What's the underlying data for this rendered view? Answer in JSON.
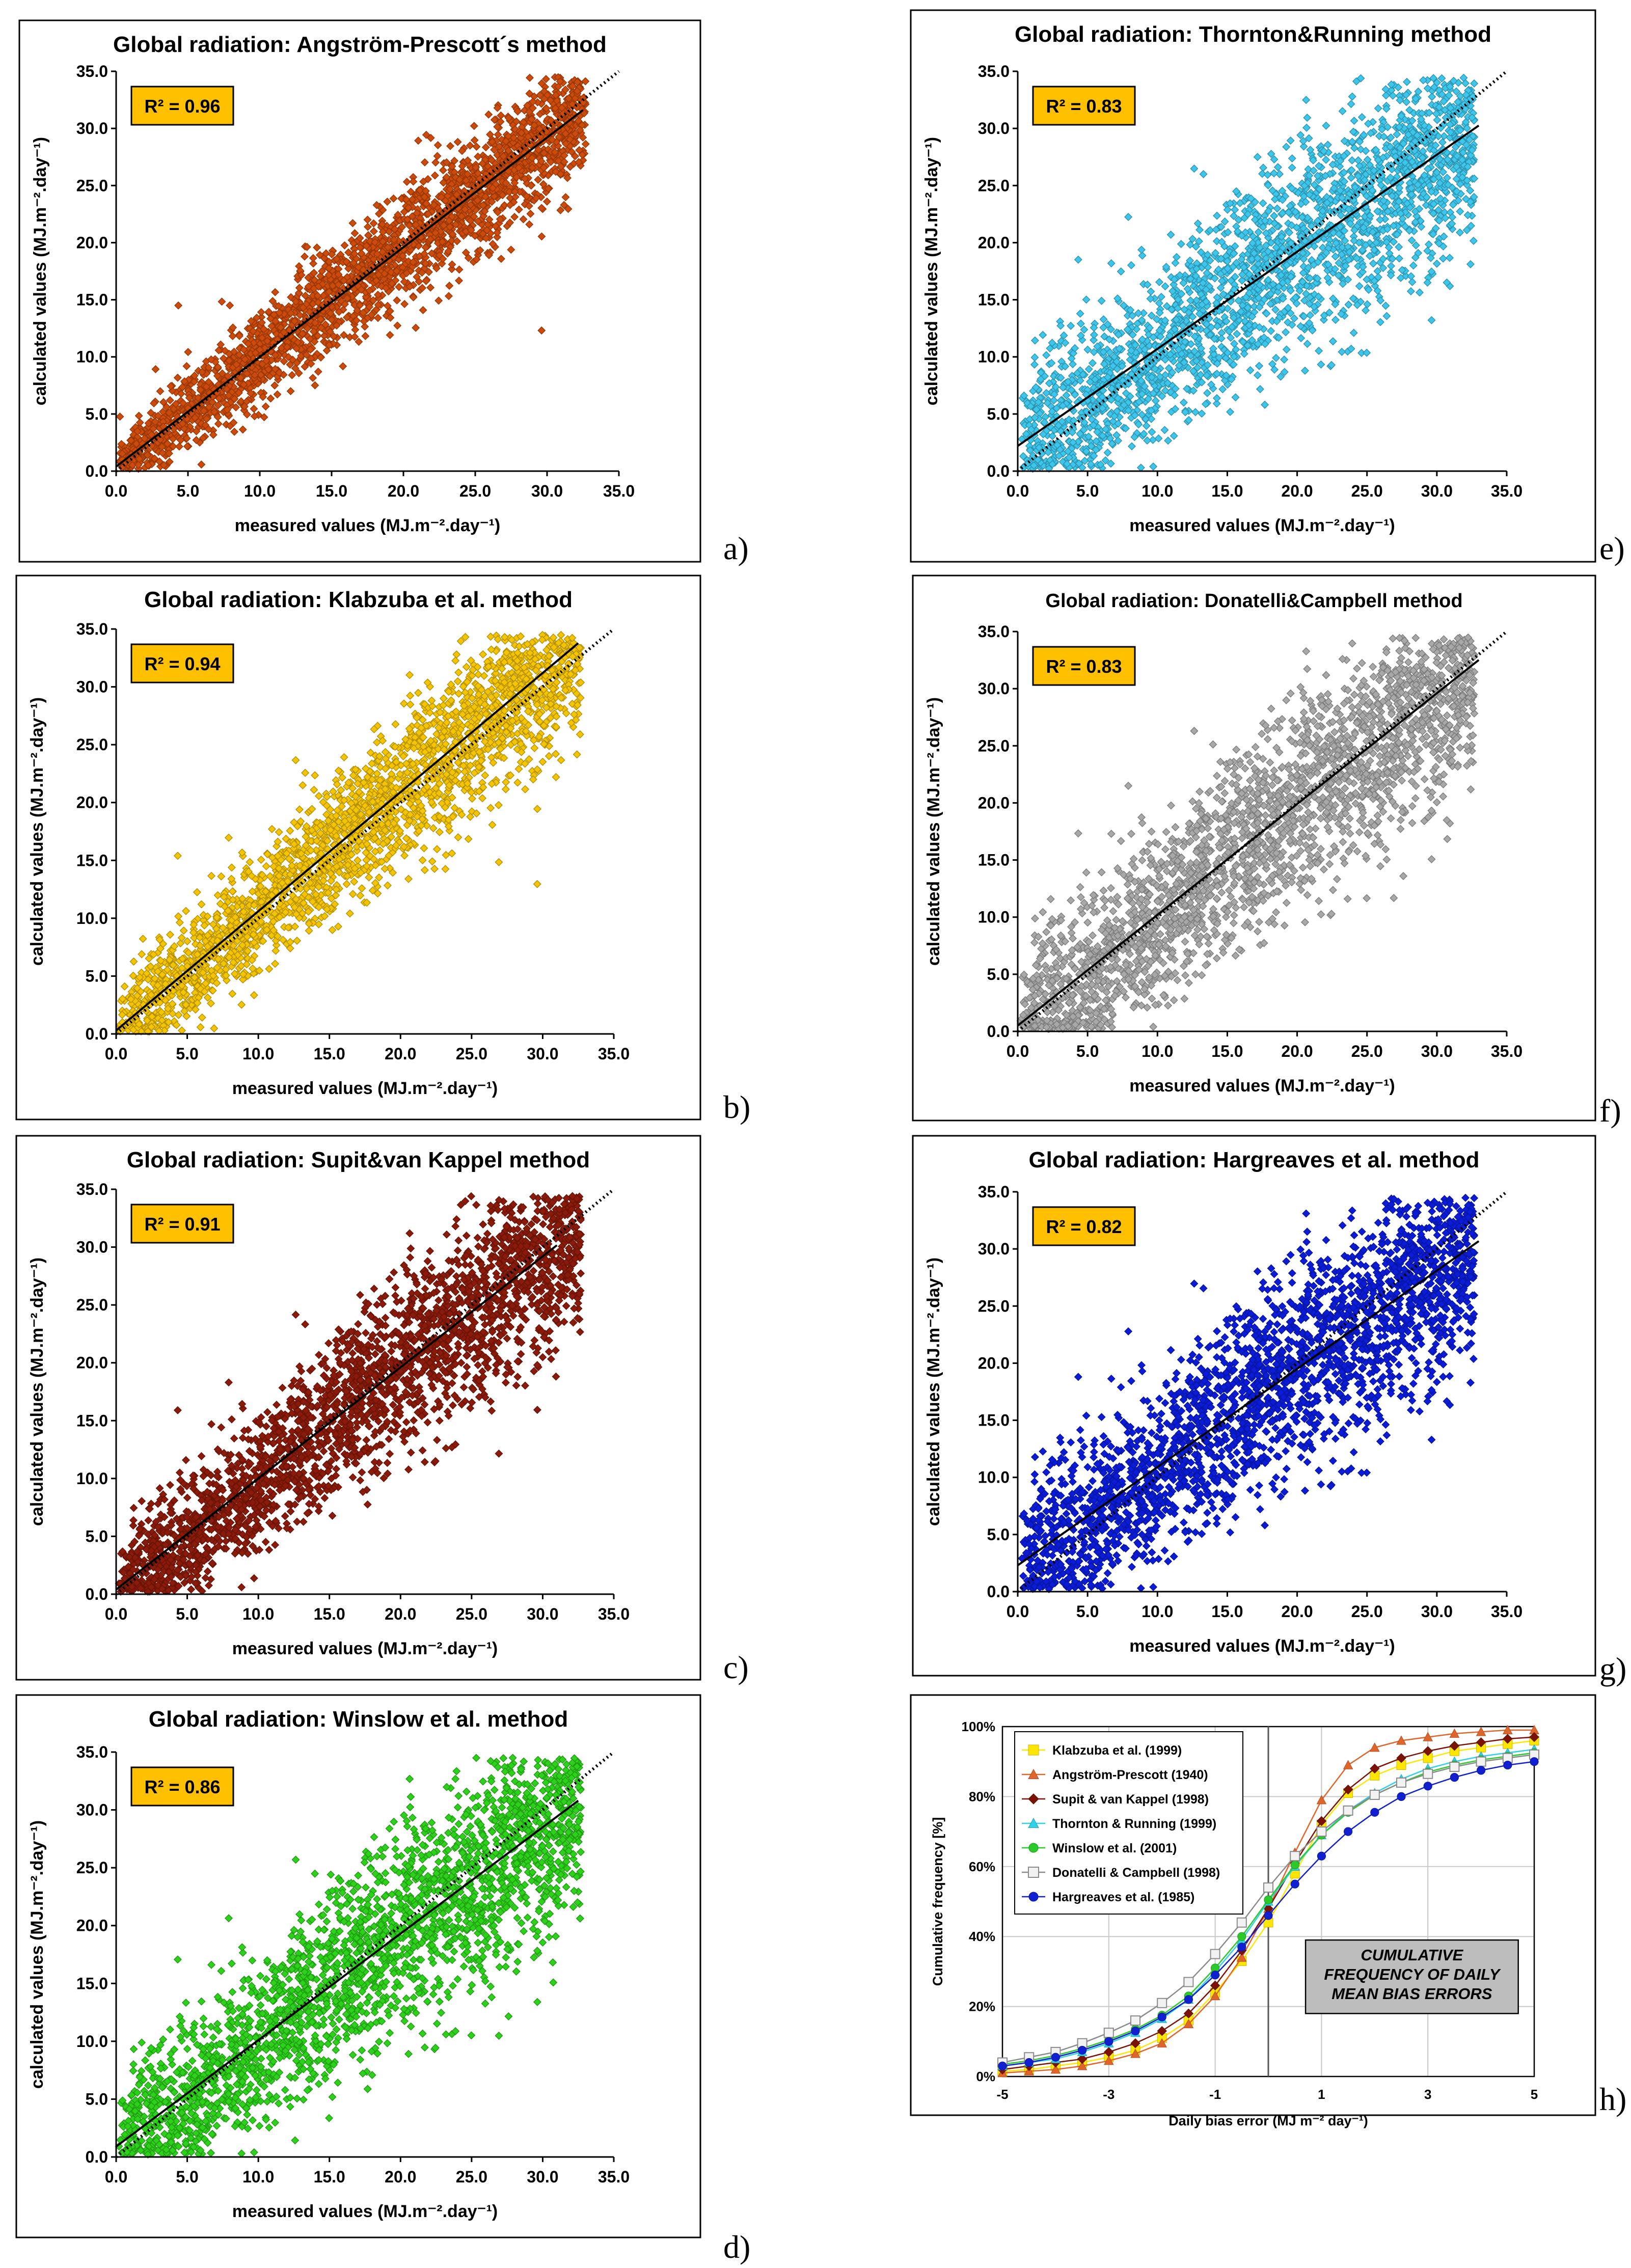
{
  "chart_data": [
    {
      "id": "a",
      "panel_label": "a)",
      "type": "scatter",
      "title": "Global radiation:  Angström-Prescott´s method",
      "r2": "R² = 0.96",
      "xlabel": "measured values (MJ.m⁻².day⁻¹)",
      "ylabel": "calculated values (MJ.m⁻².day⁻¹)",
      "xlim": [
        0,
        35
      ],
      "ylim": [
        0,
        35
      ],
      "x_ticks": [
        "0.0",
        "5.0",
        "10.0",
        "15.0",
        "20.0",
        "25.0",
        "30.0",
        "35.0"
      ],
      "y_ticks": [
        "0.0",
        "5.0",
        "10.0",
        "15.0",
        "20.0",
        "25.0",
        "30.0",
        "35.0"
      ],
      "point_color": "#cc4a0a",
      "regression": {
        "slope": 0.96,
        "intercept": 0.4,
        "x_end": 32.5
      },
      "one_to_one_line": true,
      "cloud": {
        "spread": 1.5,
        "spread_growth": 0.02,
        "density": 2600
      }
    },
    {
      "id": "b",
      "panel_label": "b)",
      "type": "scatter",
      "title": "Global radiation:  Klabzuba et al. method",
      "r2": "R² = 0.94",
      "xlabel": "measured values (MJ.m⁻².day⁻¹)",
      "ylabel": "calculated values (MJ.m⁻².day⁻¹)",
      "xlim": [
        0,
        35
      ],
      "ylim": [
        0,
        35
      ],
      "x_ticks": [
        "0.0",
        "5.0",
        "10.0",
        "15.0",
        "20.0",
        "25.0",
        "30.0",
        "35.0"
      ],
      "y_ticks": [
        "0.0",
        "5.0",
        "10.0",
        "15.0",
        "20.0",
        "25.0",
        "30.0",
        "35.0"
      ],
      "point_color": "#f5c400",
      "regression": {
        "slope": 1.03,
        "intercept": 0.3,
        "x_end": 32.5
      },
      "one_to_one_line": true,
      "cloud": {
        "spread": 1.9,
        "spread_growth": 0.03,
        "density": 2600
      }
    },
    {
      "id": "c",
      "panel_label": "c)",
      "type": "scatter",
      "title": "Global radiation:  Supit&van Kappel method",
      "r2": "R² = 0.91",
      "xlabel": "measured values (MJ.m⁻².day⁻¹)",
      "ylabel": "calculated values (MJ.m⁻².day⁻¹)",
      "xlim": [
        0,
        35
      ],
      "ylim": [
        0,
        35
      ],
      "x_ticks": [
        "0.0",
        "5.0",
        "10.0",
        "15.0",
        "20.0",
        "25.0",
        "30.0",
        "35.0"
      ],
      "y_ticks": [
        "0.0",
        "5.0",
        "10.0",
        "15.0",
        "20.0",
        "25.0",
        "30.0",
        "35.0"
      ],
      "point_color": "#8b1a0a",
      "regression": {
        "slope": 0.96,
        "intercept": 0.4,
        "x_end": 31.0
      },
      "one_to_one_line": true,
      "cloud": {
        "spread": 2.4,
        "spread_growth": 0.03,
        "density": 2800
      }
    },
    {
      "id": "d",
      "panel_label": "d)",
      "type": "scatter",
      "title": "Global radiation:  Winslow et al. method",
      "r2": "R² = 0.86",
      "xlabel": "measured values (MJ.m⁻².day⁻¹)",
      "ylabel": "calculated values (MJ.m⁻².day⁻¹)",
      "xlim": [
        0,
        35
      ],
      "ylim": [
        0,
        35
      ],
      "x_ticks": [
        "0.0",
        "5.0",
        "10.0",
        "15.0",
        "20.0",
        "25.0",
        "30.0",
        "35.0"
      ],
      "y_ticks": [
        "0.0",
        "5.0",
        "10.0",
        "15.0",
        "20.0",
        "25.0",
        "30.0",
        "35.0"
      ],
      "point_color": "#2cd11a",
      "regression": {
        "slope": 0.92,
        "intercept": 0.9,
        "x_end": 32.5
      },
      "one_to_one_line": true,
      "cloud": {
        "spread": 3.0,
        "spread_growth": 0.03,
        "density": 2800
      }
    },
    {
      "id": "e",
      "panel_label": "e)",
      "type": "scatter",
      "title": "Global radiation:  Thornton&Running method",
      "r2": "R² = 0.83",
      "xlabel": "measured values (MJ.m⁻².day⁻¹)",
      "ylabel": "calculated values (MJ.m⁻².day⁻¹)",
      "xlim": [
        0,
        35
      ],
      "ylim": [
        0,
        35
      ],
      "x_ticks": [
        "0.0",
        "5.0",
        "10.0",
        "15.0",
        "20.0",
        "25.0",
        "30.0",
        "35.0"
      ],
      "y_ticks": [
        "0.0",
        "5.0",
        "10.0",
        "15.0",
        "20.0",
        "25.0",
        "30.0",
        "35.0"
      ],
      "point_color": "#3dc6ec",
      "regression": {
        "slope": 0.85,
        "intercept": 2.2,
        "x_end": 33.0
      },
      "one_to_one_line": true,
      "cloud": {
        "spread": 3.4,
        "spread_growth": 0.02,
        "density": 2700
      }
    },
    {
      "id": "f",
      "panel_label": "f)",
      "type": "scatter",
      "title": "Global radiation:  Donatelli&Campbell method",
      "r2": "R² = 0.83",
      "xlabel": "measured values (MJ.m⁻².day⁻¹)",
      "ylabel": "calculated values (MJ.m⁻².day⁻¹)",
      "xlim": [
        0,
        35
      ],
      "ylim": [
        0,
        35
      ],
      "x_ticks": [
        "0.0",
        "5.0",
        "10.0",
        "15.0",
        "20.0",
        "25.0",
        "30.0",
        "35.0"
      ],
      "y_ticks": [
        "0.0",
        "5.0",
        "10.0",
        "15.0",
        "20.0",
        "25.0",
        "30.0",
        "35.0"
      ],
      "point_color": "#a8a8a8",
      "regression": {
        "slope": 0.97,
        "intercept": 0.5,
        "x_end": 33.0
      },
      "one_to_one_line": true,
      "cloud": {
        "spread": 3.4,
        "spread_growth": 0.02,
        "density": 2700
      }
    },
    {
      "id": "g",
      "panel_label": "g)",
      "type": "scatter",
      "title": "Global radiation:  Hargreaves et al. method",
      "r2": "R² = 0.82",
      "xlabel": "measured values (MJ.m⁻².day⁻¹)",
      "ylabel": "calculated values (MJ.m⁻².day⁻¹)",
      "xlim": [
        0,
        35
      ],
      "ylim": [
        0,
        35
      ],
      "x_ticks": [
        "0.0",
        "5.0",
        "10.0",
        "15.0",
        "20.0",
        "25.0",
        "30.0",
        "35.0"
      ],
      "y_ticks": [
        "0.0",
        "5.0",
        "10.0",
        "15.0",
        "20.0",
        "25.0",
        "30.0",
        "35.0"
      ],
      "point_color": "#0a1cd8",
      "regression": {
        "slope": 0.86,
        "intercept": 2.3,
        "x_end": 33.0
      },
      "one_to_one_line": true,
      "cloud": {
        "spread": 3.5,
        "spread_growth": 0.02,
        "density": 2800
      }
    },
    {
      "id": "h",
      "panel_label": "h)",
      "type": "line",
      "title": "",
      "xlabel": "Daily bias error (MJ m⁻² day⁻¹)",
      "ylabel": "Cumulative frequency [%]",
      "xlim": [
        -5,
        5
      ],
      "ylim": [
        0,
        100
      ],
      "x_ticks": [
        "-5",
        "-3",
        "-1",
        "1",
        "3",
        "5"
      ],
      "y_ticks": [
        "0%",
        "20%",
        "40%",
        "60%",
        "80%",
        "100%"
      ],
      "vertical_reference_x": 0,
      "annotation": [
        "CUMULATIVE",
        "FREQUENCY OF DAILY",
        "MEAN BIAS ERRORS"
      ],
      "x": [
        -5,
        -4.5,
        -4,
        -3.5,
        -3,
        -2.5,
        -2,
        -1.5,
        -1,
        -0.5,
        0,
        0.5,
        1,
        1.5,
        2,
        2.5,
        3,
        3.5,
        4,
        4.5,
        5
      ],
      "series": [
        {
          "name": "Klabzuba et al. (1999)",
          "color": "#ffe600",
          "marker": "square",
          "values": [
            1.5,
            2,
            3,
            4,
            5.5,
            7.5,
            11,
            16,
            24,
            33,
            44,
            58,
            72,
            81,
            86,
            89,
            91,
            93,
            94,
            95,
            96
          ]
        },
        {
          "name": "Angström-Prescott (1940)",
          "color": "#e0652a",
          "marker": "triangle",
          "values": [
            1,
            1.5,
            2,
            3,
            4.5,
            6.5,
            9.5,
            15,
            23,
            34,
            48,
            64,
            79,
            89,
            94,
            96,
            97,
            98,
            98.5,
            99,
            99
          ]
        },
        {
          "name": "Supit & van Kappel (1998)",
          "color": "#7a1206",
          "marker": "diamond",
          "values": [
            2,
            3,
            4,
            5,
            7,
            9.5,
            13,
            18,
            26,
            36,
            48,
            61,
            73,
            82,
            88,
            91,
            93,
            94.5,
            95.5,
            96.5,
            97
          ]
        },
        {
          "name": "Thornton & Running (1999)",
          "color": "#2fd0e8",
          "marker": "triangle",
          "values": [
            3,
            4,
            5,
            7,
            9.5,
            12.5,
            16.5,
            22,
            30,
            39,
            50,
            60,
            69,
            76,
            81,
            85,
            88,
            90,
            91.5,
            92.5,
            93.5
          ]
        },
        {
          "name": "Winslow et al. (2001)",
          "color": "#2cc92a",
          "marker": "circle",
          "values": [
            3.5,
            4.5,
            6,
            8,
            10.5,
            13.5,
            17.5,
            23,
            31,
            40,
            50.5,
            60.5,
            69,
            75.5,
            80.5,
            84,
            87,
            89,
            90.5,
            91.5,
            92.5
          ]
        },
        {
          "name": "Donatelli & Campbell (1998)",
          "color": "#8a8a8a",
          "marker": "square-open",
          "values": [
            4,
            5.5,
            7,
            9.5,
            12.5,
            16,
            21,
            27,
            35,
            44,
            54,
            63,
            70,
            76,
            80.5,
            84,
            86.5,
            88.5,
            90,
            91,
            92
          ]
        },
        {
          "name": "Hargreaves et al. (1985)",
          "color": "#1020d0",
          "marker": "circle",
          "values": [
            3,
            4,
            5.5,
            7.5,
            10,
            13,
            17,
            22,
            29,
            37,
            46,
            55,
            63,
            70,
            75.5,
            80,
            83,
            85.5,
            87.5,
            89,
            90
          ]
        }
      ]
    }
  ]
}
